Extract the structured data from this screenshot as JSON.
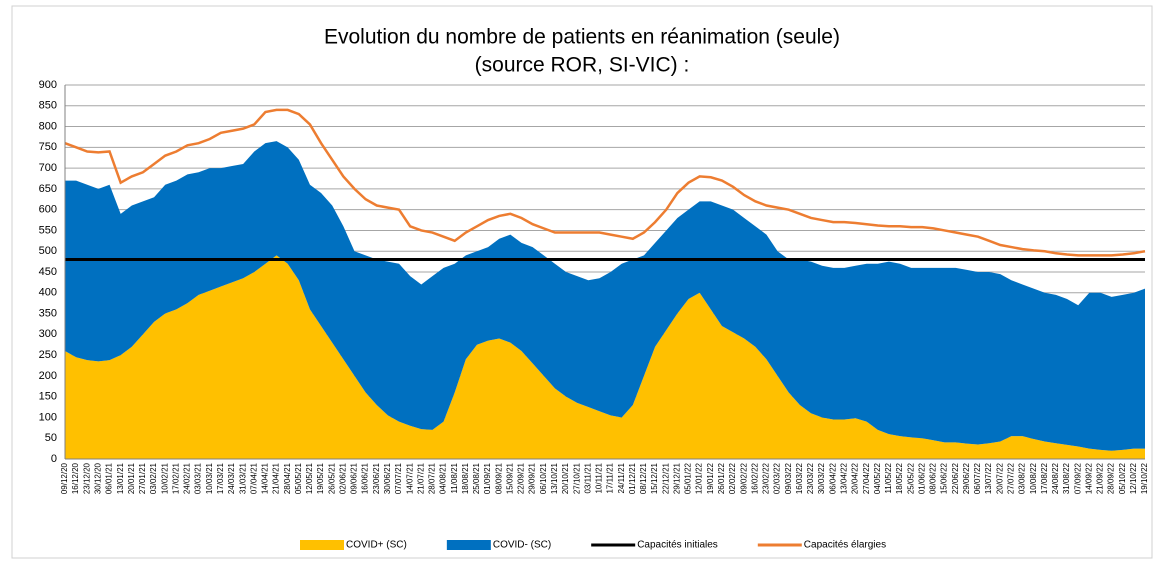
{
  "chart_data": {
    "type": "area",
    "stacked": true,
    "title": "Evolution du nombre de patients en réanimation (seule)",
    "subtitle": "(source ROR, SI-VIC) :",
    "categories": [
      "09/12/20",
      "16/12/20",
      "23/12/20",
      "30/12/20",
      "06/01/21",
      "13/01/21",
      "20/01/21",
      "27/01/21",
      "03/02/21",
      "10/02/21",
      "17/02/21",
      "24/02/21",
      "03/03/21",
      "10/03/21",
      "17/03/21",
      "24/03/21",
      "31/03/21",
      "07/04/21",
      "14/04/21",
      "21/04/21",
      "28/04/21",
      "05/05/21",
      "12/05/21",
      "19/05/21",
      "26/05/21",
      "02/06/21",
      "09/06/21",
      "16/06/21",
      "23/06/21",
      "30/06/21",
      "07/07/21",
      "14/07/21",
      "21/07/21",
      "28/07/21",
      "04/08/21",
      "11/08/21",
      "18/08/21",
      "25/08/21",
      "01/09/21",
      "08/09/21",
      "15/09/21",
      "22/09/21",
      "29/09/21",
      "06/10/21",
      "13/10/21",
      "20/10/21",
      "27/10/21",
      "03/11/21",
      "10/11/21",
      "17/11/21",
      "24/11/21",
      "01/12/21",
      "08/12/21",
      "15/12/21",
      "22/12/21",
      "29/12/21",
      "05/01/22",
      "12/01/22",
      "19/01/22",
      "26/01/22",
      "02/02/22",
      "09/02/22",
      "16/02/22",
      "23/02/22",
      "02/03/22",
      "09/03/22",
      "16/03/22",
      "23/03/22",
      "30/03/22",
      "06/04/22",
      "13/04/22",
      "20/04/22",
      "27/04/22",
      "04/05/22",
      "11/05/22",
      "18/05/22",
      "25/05/22",
      "01/06/22",
      "08/06/22",
      "15/06/22",
      "22/06/22",
      "29/06/22",
      "06/07/22",
      "13/07/22",
      "20/07/22",
      "27/07/22",
      "03/08/22",
      "10/08/22",
      "17/08/22",
      "24/08/22",
      "31/08/22",
      "07/09/22",
      "14/09/22",
      "21/09/22",
      "28/09/22",
      "05/10/22",
      "12/10/22",
      "19/10/22"
    ],
    "series": [
      {
        "name": "COVID+ (SC)",
        "type": "area",
        "color": "#FFC000",
        "values": [
          260,
          245,
          238,
          235,
          238,
          250,
          270,
          300,
          330,
          350,
          360,
          375,
          395,
          405,
          415,
          425,
          435,
          450,
          470,
          490,
          470,
          430,
          360,
          320,
          280,
          240,
          200,
          160,
          130,
          105,
          90,
          80,
          72,
          70,
          90,
          160,
          240,
          275,
          285,
          290,
          280,
          260,
          230,
          200,
          170,
          150,
          135,
          125,
          115,
          105,
          100,
          130,
          200,
          270,
          310,
          350,
          385,
          400,
          360,
          320,
          305,
          290,
          270,
          240,
          200,
          160,
          130,
          110,
          100,
          95,
          95,
          98,
          90,
          70,
          60,
          55,
          52,
          50,
          45,
          40,
          40,
          37,
          35,
          38,
          42,
          55,
          55,
          48,
          42,
          38,
          34,
          30,
          25,
          22,
          20,
          22,
          25,
          25
        ]
      },
      {
        "name": "COVID- (SC)",
        "type": "area",
        "color": "#0070C0",
        "values": [
          410,
          425,
          422,
          415,
          422,
          340,
          340,
          320,
          300,
          310,
          310,
          310,
          295,
          295,
          285,
          280,
          275,
          290,
          290,
          275,
          280,
          290,
          300,
          320,
          330,
          320,
          300,
          330,
          350,
          370,
          380,
          360,
          348,
          370,
          370,
          310,
          250,
          225,
          225,
          240,
          260,
          260,
          280,
          290,
          300,
          300,
          305,
          305,
          320,
          345,
          370,
          350,
          290,
          250,
          240,
          230,
          215,
          220,
          260,
          290,
          295,
          290,
          290,
          300,
          300,
          320,
          350,
          365,
          365,
          365,
          365,
          367,
          380,
          400,
          415,
          415,
          408,
          410,
          415,
          420,
          420,
          418,
          415,
          412,
          403,
          375,
          365,
          362,
          358,
          357,
          351,
          340,
          375,
          378,
          370,
          373,
          375,
          385
        ]
      },
      {
        "name": "Capacités initiales",
        "type": "line",
        "color": "#000000",
        "values": [
          480,
          480,
          480,
          480,
          480,
          480,
          480,
          480,
          480,
          480,
          480,
          480,
          480,
          480,
          480,
          480,
          480,
          480,
          480,
          480,
          480,
          480,
          480,
          480,
          480,
          480,
          480,
          480,
          480,
          480,
          480,
          480,
          480,
          480,
          480,
          480,
          480,
          480,
          480,
          480,
          480,
          480,
          480,
          480,
          480,
          480,
          480,
          480,
          480,
          480,
          480,
          480,
          480,
          480,
          480,
          480,
          480,
          480,
          480,
          480,
          480,
          480,
          480,
          480,
          480,
          480,
          480,
          480,
          480,
          480,
          480,
          480,
          480,
          480,
          480,
          480,
          480,
          480,
          480,
          480,
          480,
          480,
          480,
          480,
          480,
          480,
          480,
          480,
          480,
          480,
          480,
          480,
          480,
          480,
          480,
          480,
          480,
          480
        ]
      },
      {
        "name": "Capacités élargies",
        "type": "line",
        "color": "#ED7D31",
        "values": [
          760,
          750,
          740,
          738,
          740,
          665,
          680,
          690,
          710,
          730,
          740,
          755,
          760,
          770,
          785,
          790,
          795,
          805,
          835,
          840,
          840,
          830,
          805,
          760,
          720,
          680,
          650,
          625,
          610,
          605,
          600,
          560,
          550,
          545,
          535,
          525,
          545,
          560,
          575,
          585,
          590,
          580,
          565,
          555,
          545,
          545,
          545,
          545,
          545,
          540,
          535,
          530,
          545,
          570,
          600,
          640,
          665,
          680,
          678,
          670,
          655,
          635,
          620,
          610,
          605,
          600,
          590,
          580,
          575,
          570,
          570,
          568,
          565,
          562,
          560,
          560,
          558,
          558,
          555,
          550,
          545,
          540,
          535,
          525,
          515,
          510,
          505,
          502,
          500,
          495,
          492,
          490,
          490,
          490,
          490,
          492,
          495,
          500
        ]
      }
    ],
    "ylim": [
      0,
      900
    ],
    "yticks": [
      0,
      50,
      100,
      150,
      200,
      250,
      300,
      350,
      400,
      450,
      500,
      550,
      600,
      650,
      700,
      750,
      800,
      850,
      900
    ],
    "grid": true,
    "legend": "bottom"
  }
}
